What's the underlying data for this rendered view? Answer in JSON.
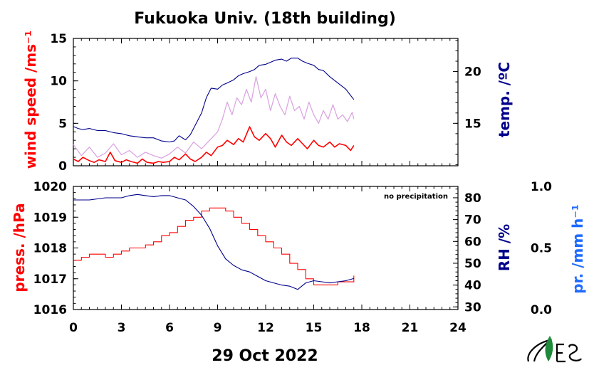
{
  "title": "Fukuoka Univ. (18th building)",
  "date_label": "29 Oct 2022",
  "colors": {
    "wind": "#ff0000",
    "wind_gust": "#d9a0e0",
    "temp": "#00008b",
    "pressure": "#ff0000",
    "rh": "#00008b",
    "precip": "#1e6bff",
    "logo_green": "#1e8a3a"
  },
  "chart_data": [
    {
      "type": "line",
      "panel": "upper",
      "x_ticks": [
        "0",
        "3",
        "6",
        "9",
        "12",
        "15",
        "18",
        "21",
        "24"
      ],
      "xlim": [
        0,
        24
      ],
      "left_axis": {
        "label": "wind speed /ms⁻¹",
        "ylim": [
          0,
          15
        ],
        "ticks": [
          "0",
          "5",
          "10",
          "15"
        ]
      },
      "right_axis": {
        "label": "temp. /ºC",
        "ylim": [
          10.9,
          23.2
        ],
        "ticks": [
          "15",
          "20"
        ]
      },
      "series": [
        {
          "axis": "left",
          "style": "mean",
          "x": [
            0,
            0.3,
            0.6,
            1,
            1.3,
            1.6,
            2,
            2.3,
            2.6,
            3,
            3.3,
            3.6,
            4,
            4.3,
            4.6,
            5,
            5.3,
            5.6,
            6,
            6.3,
            6.6,
            7,
            7.3,
            7.6,
            8,
            8.3,
            8.6,
            9,
            9.3,
            9.6,
            10,
            10.3,
            10.6,
            11,
            11.3,
            11.6,
            12,
            12.3,
            12.6,
            13,
            13.3,
            13.6,
            14,
            14.3,
            14.6,
            15,
            15.3,
            15.6,
            16,
            16.3,
            16.6,
            17,
            17.3,
            17.5
          ],
          "y": [
            0.8,
            0.5,
            1.0,
            0.6,
            0.4,
            0.7,
            0.5,
            1.6,
            0.6,
            0.4,
            0.7,
            0.5,
            0.3,
            0.8,
            0.4,
            0.3,
            0.5,
            0.4,
            0.5,
            1.0,
            0.7,
            1.4,
            0.8,
            0.5,
            1.0,
            1.6,
            1.2,
            2.2,
            2.4,
            3.0,
            2.5,
            3.2,
            2.8,
            4.6,
            3.4,
            3.0,
            3.8,
            3.2,
            2.2,
            3.6,
            2.8,
            2.4,
            3.2,
            2.6,
            2.0,
            3.0,
            2.4,
            2.2,
            2.8,
            2.2,
            2.6,
            2.4,
            1.8,
            2.4
          ]
        },
        {
          "axis": "left",
          "style": "gust",
          "x": [
            0,
            0.5,
            1,
            1.5,
            2,
            2.5,
            3,
            3.5,
            4,
            4.5,
            5,
            5.5,
            6,
            6.5,
            7,
            7.5,
            8,
            8.5,
            9,
            9.3,
            9.6,
            9.9,
            10.2,
            10.5,
            10.8,
            11.1,
            11.4,
            11.7,
            12,
            12.3,
            12.6,
            12.9,
            13.2,
            13.5,
            13.8,
            14.1,
            14.4,
            14.7,
            15,
            15.3,
            15.6,
            15.9,
            16.2,
            16.5,
            16.8,
            17.1,
            17.4,
            17.5
          ],
          "y": [
            2.5,
            1.2,
            2.2,
            1.0,
            1.5,
            2.6,
            1.3,
            1.8,
            1.0,
            1.6,
            1.2,
            0.9,
            1.4,
            2.2,
            1.5,
            2.8,
            2.0,
            3.0,
            4.0,
            5.5,
            7.5,
            6.0,
            8.0,
            7.2,
            9.0,
            7.5,
            10.5,
            8.0,
            9.0,
            6.5,
            8.5,
            7.0,
            6.0,
            8.2,
            6.5,
            7.0,
            5.5,
            7.5,
            6.0,
            5.0,
            6.5,
            5.5,
            7.2,
            5.5,
            6.0,
            5.2,
            6.3,
            5.5
          ]
        },
        {
          "axis": "right",
          "style": "temperature",
          "x": [
            0,
            0.3,
            0.6,
            1,
            1.5,
            2,
            2.5,
            3,
            3.5,
            4,
            4.5,
            5,
            5.5,
            6,
            6.3,
            6.6,
            7,
            7.3,
            7.6,
            8,
            8.3,
            8.6,
            9,
            9.3,
            9.6,
            10,
            10.3,
            10.6,
            11,
            11.3,
            11.6,
            12,
            12.3,
            12.6,
            13,
            13.3,
            13.6,
            14,
            14.3,
            14.6,
            15,
            15.3,
            15.6,
            16,
            16.5,
            17,
            17.5
          ],
          "y": [
            14.7,
            14.5,
            14.4,
            14.5,
            14.3,
            14.3,
            14.1,
            14.0,
            13.8,
            13.7,
            13.6,
            13.6,
            13.3,
            13.2,
            13.3,
            13.8,
            13.4,
            13.9,
            14.8,
            16.0,
            17.5,
            18.4,
            18.3,
            18.7,
            18.9,
            19.2,
            19.6,
            19.8,
            20.0,
            20.2,
            20.6,
            20.7,
            20.9,
            21.1,
            21.2,
            21.0,
            21.3,
            21.3,
            21.0,
            20.8,
            20.6,
            20.2,
            20.1,
            19.5,
            18.9,
            18.3,
            17.3
          ]
        }
      ]
    },
    {
      "type": "line",
      "panel": "lower",
      "x_ticks": [
        "0",
        "3",
        "6",
        "9",
        "12",
        "15",
        "18",
        "21",
        "24"
      ],
      "xlim": [
        0,
        24
      ],
      "annotation": "no precipitation",
      "left_axis": {
        "label": "press. /hPa",
        "ylim": [
          1016,
          1020
        ],
        "ticks": [
          "1016",
          "1017",
          "1018",
          "1019",
          "1020"
        ]
      },
      "right_axis": {
        "label": "RH /%",
        "ylim": [
          28.8,
          85.2
        ],
        "ticks": [
          "30",
          "40",
          "50",
          "60",
          "70",
          "80"
        ]
      },
      "right_axis_2": {
        "label": "pr. /mm h⁻¹",
        "ylim": [
          0,
          1
        ],
        "ticks": [
          "0.0",
          "0.5",
          "1.0"
        ]
      },
      "series": [
        {
          "axis": "left",
          "style": "pressure",
          "x": [
            0,
            0.5,
            1,
            1.5,
            2,
            2.5,
            3,
            3.5,
            4,
            4.5,
            5,
            5.5,
            6,
            6.5,
            7,
            7.5,
            8,
            8.5,
            9,
            9.5,
            10,
            10.5,
            11,
            11.5,
            12,
            12.5,
            13,
            13.5,
            14,
            14.5,
            15,
            15.5,
            16,
            16.5,
            17,
            17.5
          ],
          "y": [
            1017.6,
            1017.7,
            1017.8,
            1017.8,
            1017.7,
            1017.8,
            1017.9,
            1018.0,
            1018.0,
            1018.1,
            1018.2,
            1018.4,
            1018.5,
            1018.7,
            1018.9,
            1019.0,
            1019.2,
            1019.3,
            1019.3,
            1019.2,
            1019.0,
            1018.8,
            1018.6,
            1018.4,
            1018.2,
            1018.0,
            1017.8,
            1017.5,
            1017.3,
            1017.0,
            1016.8,
            1016.8,
            1016.8,
            1016.9,
            1016.9,
            1017.1
          ]
        },
        {
          "axis": "right",
          "style": "humidity",
          "x": [
            0,
            0.5,
            1,
            1.5,
            2,
            2.5,
            3,
            3.5,
            4,
            4.5,
            5,
            5.5,
            6,
            6.5,
            7,
            7.5,
            8,
            8.5,
            9,
            9.5,
            10,
            10.5,
            11,
            11.5,
            12,
            12.5,
            13,
            13.5,
            14,
            14.5,
            15,
            15.5,
            16,
            16.5,
            17,
            17.5
          ],
          "y": [
            79,
            79,
            79,
            79.5,
            80,
            80,
            80,
            81,
            81.5,
            81,
            80.5,
            81,
            81,
            80,
            79,
            76,
            72,
            66,
            58,
            52,
            49,
            47,
            46,
            44,
            42,
            41,
            40,
            39.5,
            38,
            41,
            42,
            41.5,
            41,
            41.5,
            42,
            43
          ]
        }
      ]
    }
  ]
}
